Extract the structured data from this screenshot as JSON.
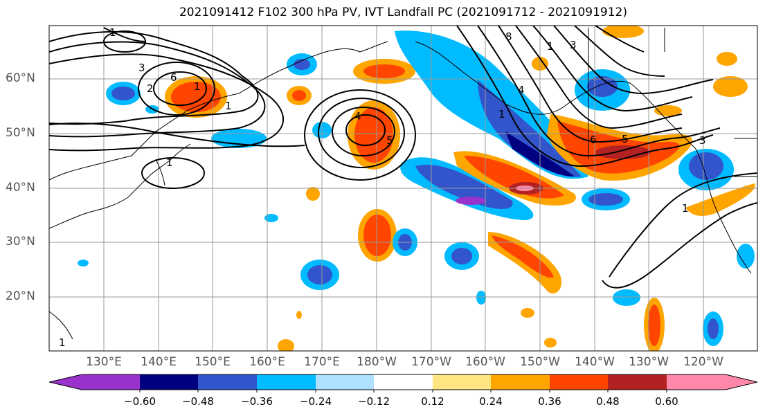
{
  "title": "2021091412 F102 300 hPa PV, IVT Landfall PC (2021091712 - 2021091912)",
  "lat_labels": [
    "60°N",
    "50°N",
    "40°N",
    "30°N",
    "20°N"
  ],
  "lon_labels": [
    "130°E",
    "140°E",
    "150°E",
    "160°E",
    "170°E",
    "180°W",
    "170°W",
    "160°W",
    "150°W",
    "140°W",
    "130°W",
    "120°W"
  ],
  "colorbar": {
    "ticks": [
      "−0.60",
      "−0.48",
      "−0.36",
      "−0.24",
      "−0.12",
      "0.12",
      "0.24",
      "0.36",
      "0.48",
      "0.60"
    ],
    "colors": [
      "#9933cc",
      "#000080",
      "#3355cc",
      "#00bbff",
      "#b0e0ff",
      "#ffffff",
      "#ffe680",
      "#ffa500",
      "#ff4500",
      "#b22222",
      "#ff88aa"
    ]
  },
  "contour_labels": [
    "1",
    "3",
    "2",
    "1",
    "6",
    "4",
    "1",
    "5",
    "8",
    "1",
    "4",
    "3",
    "6",
    "5",
    "1",
    "3",
    "1",
    "1",
    "1"
  ]
}
